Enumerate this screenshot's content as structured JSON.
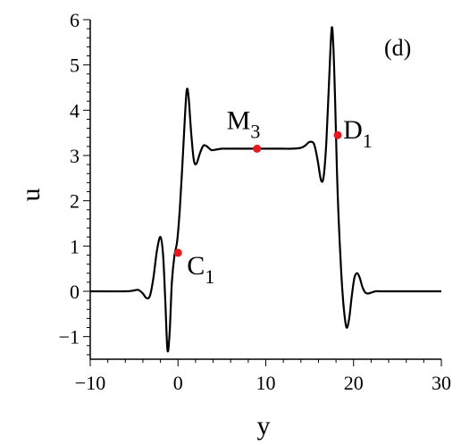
{
  "chart_data": {
    "type": "line",
    "panel_label": "(d)",
    "xlabel": "y",
    "ylabel": "u",
    "xlim": [
      -10,
      30
    ],
    "ylim": [
      -1.5,
      6
    ],
    "xticks": [
      -10,
      0,
      10,
      20,
      30
    ],
    "xtick_labels": [
      "−10",
      "0",
      "10",
      "20",
      "30"
    ],
    "yticks": [
      -1,
      0,
      1,
      2,
      3,
      4,
      5,
      6
    ],
    "ytick_labels": [
      "−1",
      "0",
      "1",
      "2",
      "3",
      "4",
      "5",
      "6"
    ],
    "series": [
      {
        "color": "#000000",
        "x": [
          -10,
          -6,
          -5,
          -4.5,
          -4.0,
          -3.6,
          -3.2,
          -2.8,
          -2.4,
          -2.0,
          -1.7,
          -1.45,
          -1.2,
          -0.95,
          -0.7,
          -0.4,
          -0.1,
          0.2,
          0.5,
          0.8,
          1.0,
          1.2,
          1.5,
          1.8,
          2.1,
          2.5,
          2.9,
          3.3,
          3.8,
          4.3,
          5.0,
          5.5,
          6,
          7,
          8,
          9,
          10,
          11,
          12,
          13,
          14,
          14.5,
          15,
          15.5,
          15.9,
          16.3,
          16.6,
          16.9,
          17.2,
          17.5,
          17.7,
          17.9,
          18.1,
          18.3,
          18.6,
          18.9,
          19.2,
          19.5,
          19.8,
          20.1,
          20.4,
          20.7,
          21.0,
          21.3,
          21.6,
          22.0,
          22.5,
          23,
          25,
          30
        ],
        "y": [
          0,
          0,
          0.02,
          0.03,
          -0.05,
          -0.15,
          -0.1,
          0.3,
          0.9,
          1.2,
          0.8,
          -0.2,
          -1.3,
          -0.9,
          0.2,
          0.8,
          1.1,
          1.8,
          2.8,
          3.9,
          4.45,
          4.3,
          3.5,
          2.9,
          2.82,
          3.05,
          3.22,
          3.2,
          3.12,
          3.13,
          3.15,
          3.15,
          3.15,
          3.15,
          3.15,
          3.15,
          3.15,
          3.15,
          3.15,
          3.15,
          3.17,
          3.22,
          3.3,
          3.25,
          2.9,
          2.45,
          2.55,
          3.3,
          4.6,
          5.8,
          5.4,
          4.2,
          2.7,
          1.6,
          0.4,
          -0.4,
          -0.8,
          -0.6,
          -0.1,
          0.3,
          0.4,
          0.3,
          0.1,
          -0.02,
          -0.05,
          -0.03,
          0.0,
          0.0,
          0.0,
          0.0
        ]
      }
    ],
    "points": [
      {
        "label": "C",
        "sub": "1",
        "x": 0,
        "y": 0.85,
        "color": "#e8191c"
      },
      {
        "label": "M",
        "sub": "3",
        "x": 9,
        "y": 3.15,
        "color": "#e8191c"
      },
      {
        "label": "D",
        "sub": "1",
        "x": 18.2,
        "y": 3.45,
        "color": "#e8191c"
      }
    ],
    "grid": false
  }
}
